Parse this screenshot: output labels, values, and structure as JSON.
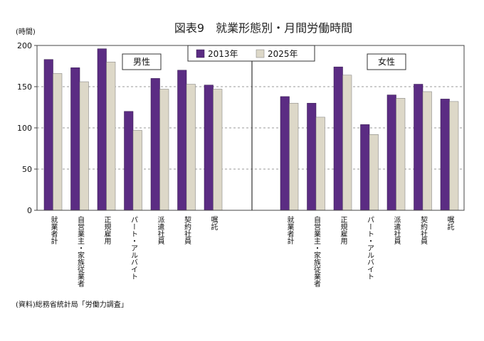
{
  "chart_data": {
    "type": "bar",
    "title": "図表9　就業形態別・月間労働時間",
    "ylabel": "(時間)",
    "ylim": [
      0,
      200
    ],
    "yticks": [
      0,
      50,
      100,
      150,
      200
    ],
    "grid": true,
    "legend_position": "top-center",
    "source": "(資料)総務省統計局「労働力調査」",
    "series": [
      {
        "name": "2013年",
        "color": "#5b2c83"
      },
      {
        "name": "2025年",
        "color": "#ddd8c8"
      }
    ],
    "groups": [
      {
        "label": "男性",
        "categories": [
          "就業者計",
          "自営業主・家族従業者",
          "正規雇用",
          "パート・アルバイト",
          "派遣社員",
          "契約社員",
          "嘱託"
        ],
        "values_2013": [
          183,
          173,
          196,
          120,
          160,
          170,
          152
        ],
        "values_2025": [
          166,
          156,
          180,
          97,
          147,
          153,
          147
        ]
      },
      {
        "label": "女性",
        "categories": [
          "就業者計",
          "自営業主・家族従業者",
          "正規雇用",
          "パート・アルバイト",
          "派遣社員",
          "契約社員",
          "嘱託"
        ],
        "values_2013": [
          138,
          130,
          174,
          104,
          140,
          153,
          135
        ],
        "values_2025": [
          130,
          113,
          164,
          92,
          136,
          144,
          132
        ]
      }
    ]
  }
}
